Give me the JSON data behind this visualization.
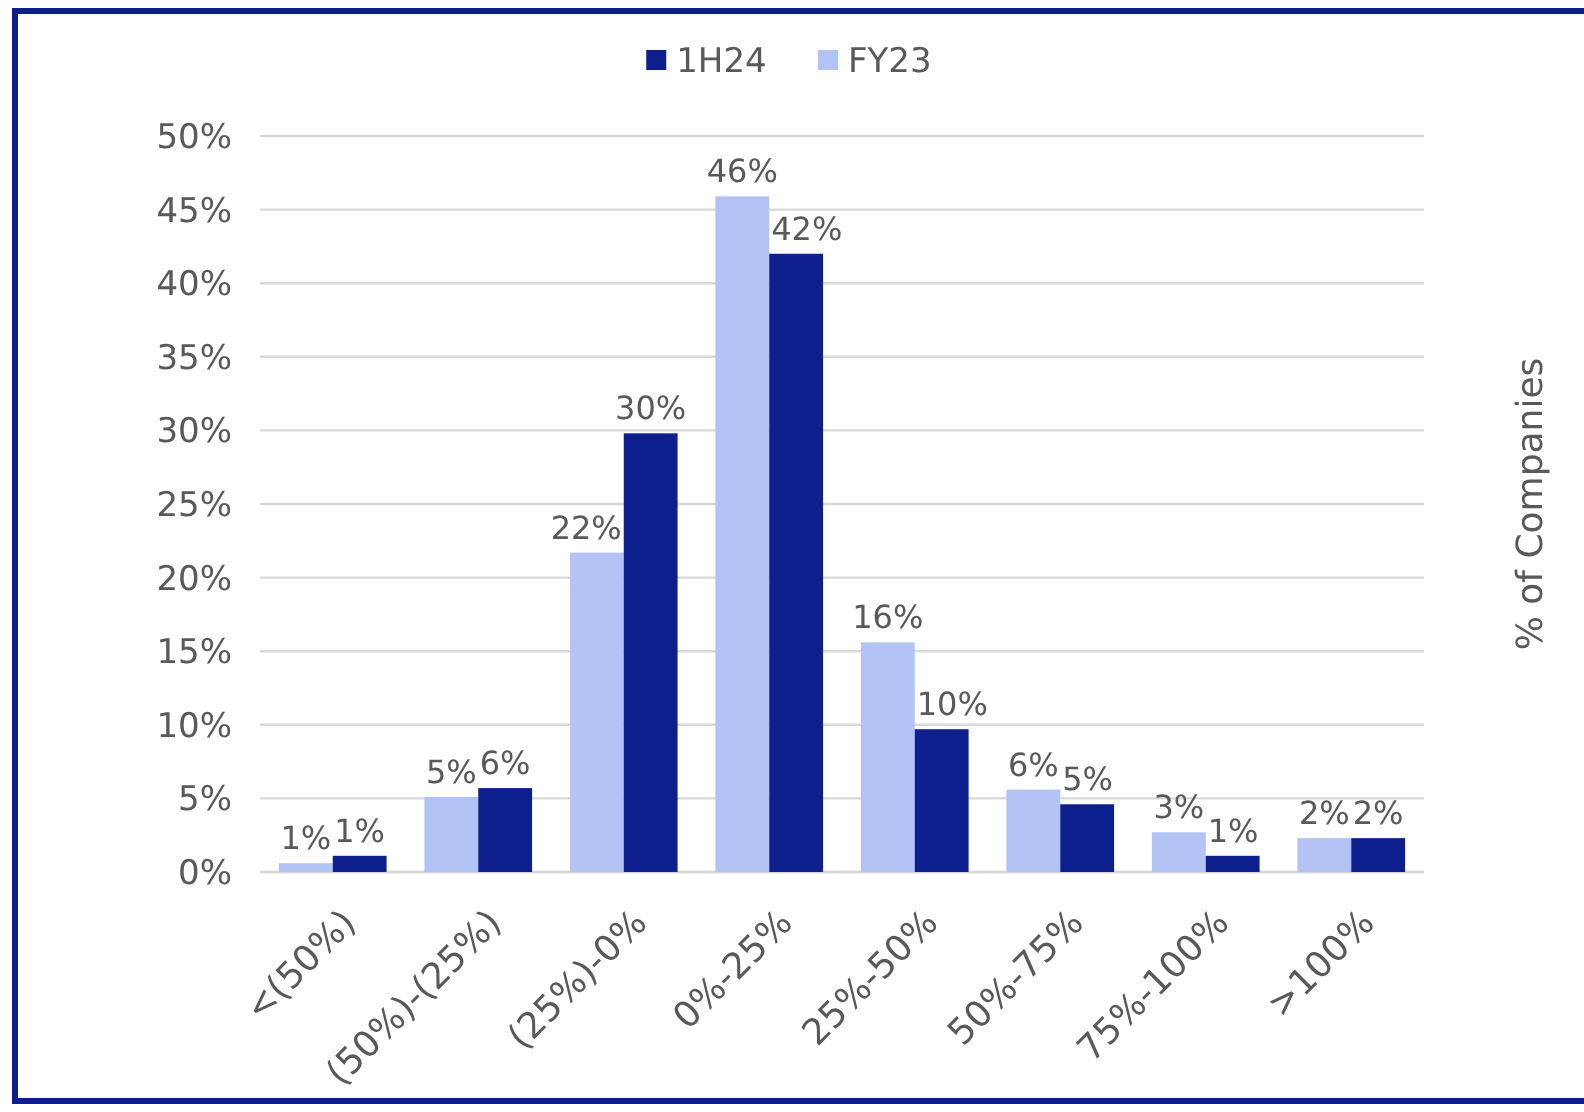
{
  "chart_data": {
    "type": "bar",
    "ylabel": "% of Companies",
    "categories": [
      "<(50%)",
      "(50%)-(25%)",
      "(25%)-0%",
      "0%-25%",
      "25%-50%",
      "50%-75%",
      "75%-100%",
      ">100%"
    ],
    "series": [
      {
        "name": "FY23",
        "color": "#b3c3f5",
        "values": [
          0.6,
          5.1,
          21.7,
          45.9,
          15.6,
          5.6,
          2.7,
          2.3
        ],
        "value_labels": [
          "1%",
          "5%",
          "22%",
          "46%",
          "16%",
          "6%",
          "3%",
          "2%"
        ]
      },
      {
        "name": "1H24",
        "color": "#0d1f8c",
        "values": [
          1.1,
          5.7,
          29.8,
          42.0,
          9.7,
          4.6,
          1.1,
          2.3
        ],
        "value_labels": [
          "1%",
          "6%",
          "30%",
          "42%",
          "10%",
          "5%",
          "1%",
          "2%"
        ]
      }
    ],
    "ylim": [
      0,
      50
    ],
    "yticks": [
      {
        "value": 0,
        "label": "0%"
      },
      {
        "value": 5,
        "label": "5%"
      },
      {
        "value": 10,
        "label": "10%"
      },
      {
        "value": 15,
        "label": "15%"
      },
      {
        "value": 20,
        "label": "20%"
      },
      {
        "value": 25,
        "label": "25%"
      },
      {
        "value": 30,
        "label": "30%"
      },
      {
        "value": 35,
        "label": "35%"
      },
      {
        "value": 40,
        "label": "40%"
      },
      {
        "value": 45,
        "label": "45%"
      },
      {
        "value": 50,
        "label": "50%"
      }
    ],
    "grid": "y",
    "legend": "top"
  }
}
